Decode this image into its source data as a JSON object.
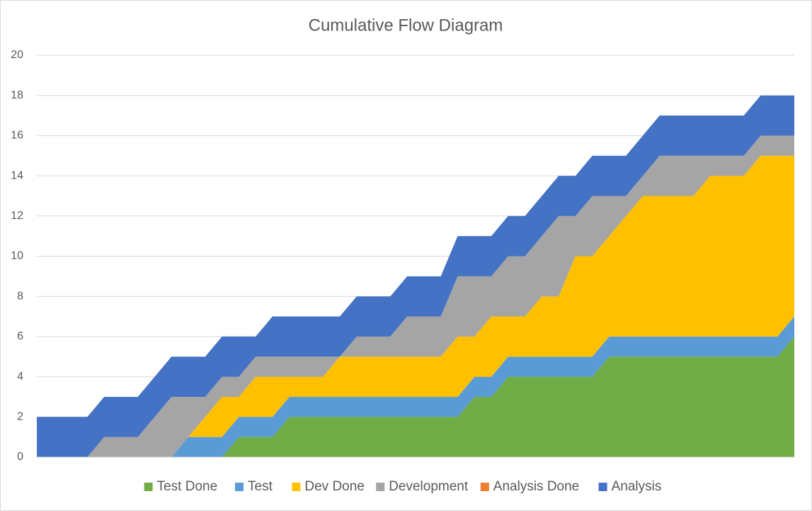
{
  "chart_data": {
    "type": "stacked-area",
    "title": "Cumulative Flow Diagram",
    "categories": [
      null,
      null,
      null,
      null,
      null,
      null,
      null,
      null,
      null,
      null,
      null,
      null,
      null,
      null,
      null,
      null,
      null,
      null,
      null,
      null,
      null,
      null,
      null,
      null,
      null,
      null,
      null,
      null,
      null,
      null,
      null,
      null,
      null,
      null,
      null,
      null,
      null,
      null,
      null,
      null,
      null,
      null,
      null,
      null,
      null,
      null
    ],
    "series": [
      {
        "name": "Test Done",
        "color": "#70ad47",
        "values": [
          0,
          0,
          0,
          0,
          0,
          0,
          0,
          0,
          0,
          0,
          0,
          0,
          1,
          1,
          1,
          2,
          2,
          2,
          2,
          2,
          2,
          2,
          2,
          2,
          2,
          2,
          3,
          3,
          4,
          4,
          4,
          4,
          4,
          4,
          5,
          5,
          5,
          5,
          5,
          5,
          5,
          5,
          5,
          5,
          5,
          6
        ]
      },
      {
        "name": "Test",
        "color": "#5b9bd5",
        "values": [
          0,
          0,
          0,
          0,
          0,
          0,
          0,
          0,
          0,
          1,
          1,
          1,
          1,
          1,
          1,
          1,
          1,
          1,
          1,
          1,
          1,
          1,
          1,
          1,
          1,
          1,
          1,
          1,
          1,
          1,
          1,
          1,
          1,
          1,
          1,
          1,
          1,
          1,
          1,
          1,
          1,
          1,
          1,
          1,
          1,
          1
        ]
      },
      {
        "name": "Dev Done",
        "color": "#ffc000",
        "values": [
          0,
          0,
          0,
          0,
          0,
          0,
          0,
          0,
          0,
          0,
          1,
          2,
          1,
          2,
          2,
          1,
          1,
          1,
          2,
          2,
          2,
          2,
          2,
          2,
          2,
          3,
          2,
          3,
          2,
          2,
          3,
          3,
          5,
          5,
          5,
          6,
          7,
          7,
          7,
          7,
          8,
          8,
          8,
          9,
          9,
          8
        ]
      },
      {
        "name": "Development",
        "color": "#a5a5a5",
        "values": [
          0,
          0,
          0,
          0,
          1,
          1,
          1,
          2,
          3,
          2,
          1,
          1,
          1,
          1,
          1,
          1,
          1,
          1,
          0,
          1,
          1,
          1,
          2,
          2,
          2,
          3,
          3,
          2,
          3,
          3,
          3,
          4,
          2,
          3,
          2,
          1,
          1,
          2,
          2,
          2,
          1,
          1,
          1,
          1,
          1,
          1
        ]
      },
      {
        "name": "Analysis Done",
        "color": "#ed7d31",
        "values": [
          0,
          0,
          0,
          0,
          0,
          0,
          0,
          0,
          0,
          0,
          0,
          0,
          0,
          0,
          0,
          0,
          0,
          0,
          0,
          0,
          0,
          0,
          0,
          0,
          0,
          0,
          0,
          0,
          0,
          0,
          0,
          0,
          0,
          0,
          0,
          0,
          0,
          0,
          0,
          0,
          0,
          0,
          0,
          0,
          0,
          0
        ]
      },
      {
        "name": "Analysis",
        "color": "#4472c4",
        "values": [
          2,
          2,
          2,
          2,
          2,
          2,
          2,
          2,
          2,
          2,
          2,
          2,
          2,
          1,
          2,
          2,
          2,
          2,
          2,
          2,
          2,
          2,
          2,
          2,
          2,
          2,
          2,
          2,
          2,
          2,
          2,
          2,
          2,
          2,
          2,
          2,
          2,
          2,
          2,
          2,
          2,
          2,
          2,
          2,
          2,
          2
        ]
      }
    ],
    "ylim": [
      0,
      20
    ],
    "yticks": [
      0,
      2,
      4,
      6,
      8,
      10,
      12,
      14,
      16,
      18,
      20
    ],
    "grid": true,
    "legend": "bottom"
  }
}
